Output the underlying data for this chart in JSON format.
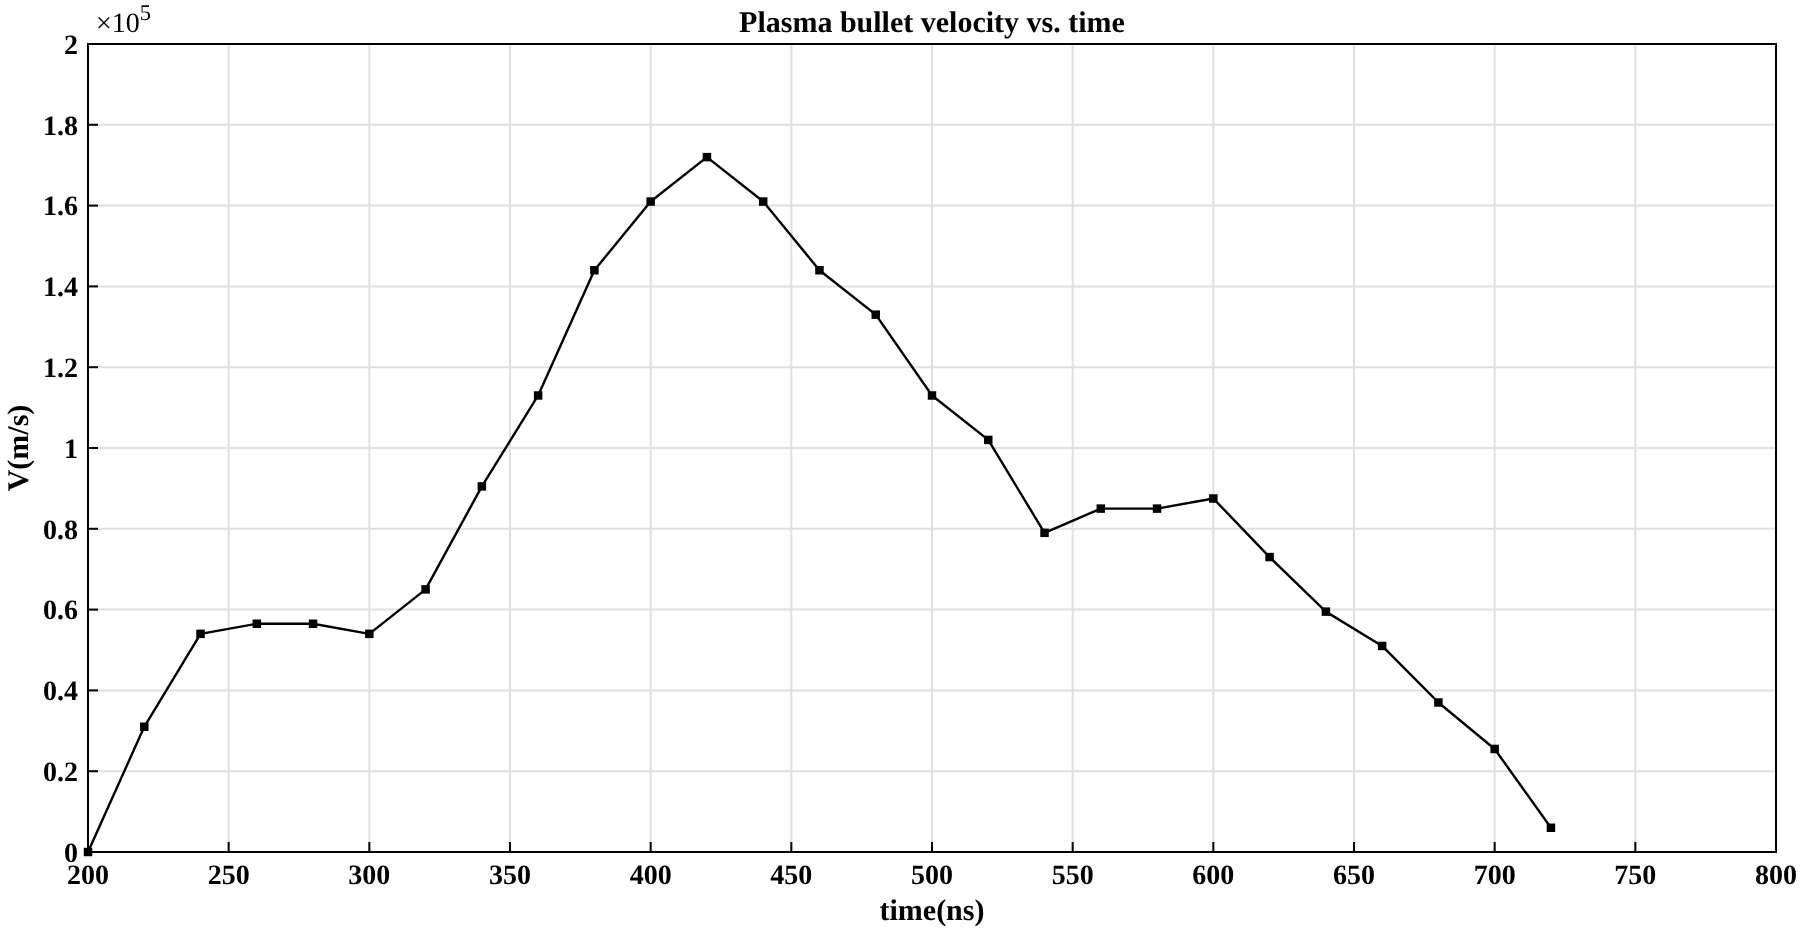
{
  "chart_data": {
    "type": "line",
    "title": "Plasma bullet velocity vs. time",
    "xlabel": "time(ns)",
    "ylabel": "V(m/s)",
    "annotations": [
      "×10$^{5}$"
    ],
    "x": [
      200,
      220,
      240,
      260,
      280,
      300,
      320,
      340,
      360,
      380,
      400,
      420,
      440,
      460,
      480,
      500,
      520,
      540,
      560,
      580,
      600,
      620,
      640,
      660,
      680,
      700,
      720
    ],
    "series": [
      {
        "color": "#000000",
        "values": [
          0,
          0.31,
          0.54,
          0.565,
          0.565,
          0.54,
          0.65,
          0.905,
          1.13,
          1.44,
          1.61,
          1.72,
          1.61,
          1.44,
          1.33,
          1.13,
          1.02,
          0.79,
          0.85,
          0.85,
          0.875,
          0.73,
          0.595,
          0.51,
          0.37,
          0.255,
          0.06
        ]
      }
    ],
    "xlim": [
      200,
      800
    ],
    "xticks": [
      200,
      250,
      300,
      350,
      400,
      450,
      500,
      550,
      600,
      650,
      700,
      750,
      800
    ],
    "ylim": [
      0,
      2
    ],
    "yticks": [
      0,
      0.2,
      0.4,
      0.6,
      0.8,
      1,
      1.2,
      1.4,
      1.6,
      1.8,
      2
    ],
    "grid": true,
    "marker": "square",
    "line_style": "solid"
  }
}
